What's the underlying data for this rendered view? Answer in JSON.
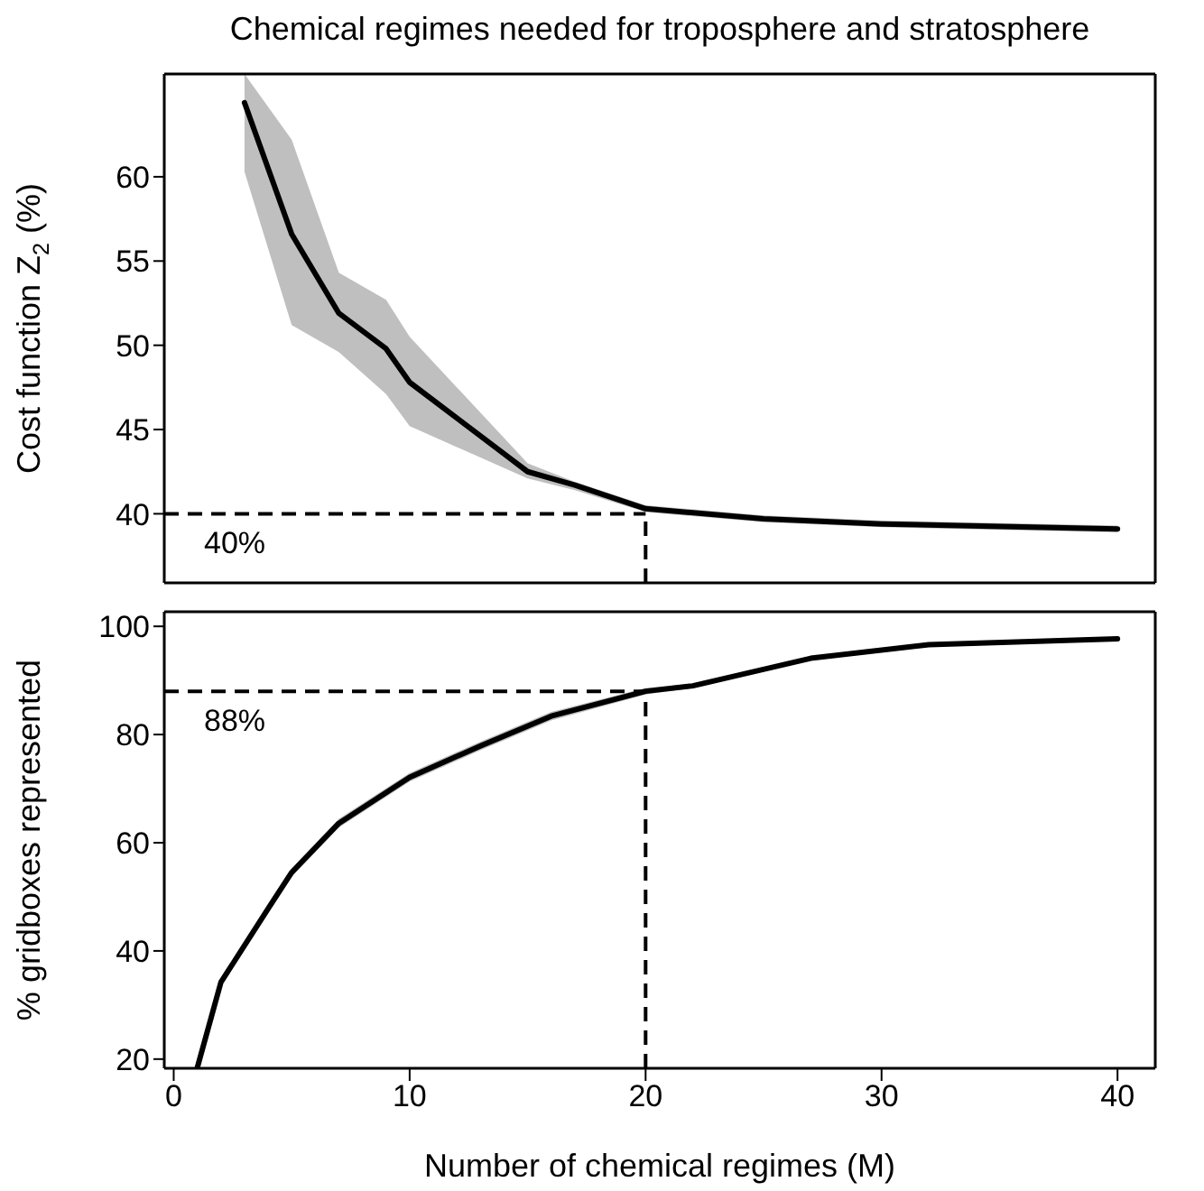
{
  "chart_data": [
    {
      "type": "line",
      "title": "Chemical regimes needed for troposphere and stratosphere",
      "ylabel": "Cost function Z$_{2}$ (%)",
      "xlim": [
        -0.4,
        41.6
      ],
      "xticks": [
        0,
        10,
        20,
        30,
        40
      ],
      "ylim": [
        35.9,
        66.1
      ],
      "yticks": [
        40,
        45,
        50,
        55,
        60
      ],
      "tick_labels": "y",
      "grid": false,
      "marker": "none",
      "line_style": "solid",
      "series": [
        {
          "color": "#000000",
          "x": [
            3,
            5,
            7,
            9,
            10,
            15,
            17,
            20,
            25,
            30,
            40
          ],
          "values": [
            64.4,
            56.6,
            51.9,
            49.8,
            47.8,
            42.5,
            41.7,
            40.3,
            39.7,
            39.4,
            39.1
          ],
          "lower": [
            60.3,
            51.2,
            49.6,
            47.1,
            45.2,
            42.1,
            41.4,
            40.1,
            39.5,
            39.2,
            38.9
          ],
          "upper": [
            66.1,
            62.2,
            54.3,
            52.7,
            50.5,
            43.0,
            41.9,
            40.5,
            39.9,
            39.6,
            39.3
          ]
        }
      ],
      "ref_lines": [
        {
          "axis": "y",
          "value": 40,
          "label": "40%",
          "line_style": "dashed",
          "color": "#000000"
        },
        {
          "axis": "x",
          "value": 20,
          "line_style": "dashed",
          "color": "#000000"
        }
      ]
    },
    {
      "type": "line",
      "xlabel": "Number of chemical regimes (M)",
      "ylabel": "% gridboxes represented",
      "xlim": [
        -0.4,
        41.6
      ],
      "xticks": [
        0,
        10,
        20,
        30,
        40
      ],
      "ylim": [
        18.3,
        102.7
      ],
      "yticks": [
        20,
        40,
        60,
        80,
        100
      ],
      "grid": false,
      "marker": "none",
      "line_style": "solid",
      "series": [
        {
          "color": "#000000",
          "x": [
            1,
            2,
            3,
            4,
            5,
            7,
            10,
            13,
            16,
            20,
            22,
            27,
            32,
            40
          ],
          "values": [
            18.4,
            34.2,
            41.0,
            47.8,
            54.5,
            63.6,
            72.1,
            77.9,
            83.4,
            88.0,
            89.0,
            94.1,
            96.6,
            97.7
          ],
          "lower": [
            18.4,
            34.2,
            40.6,
            47.0,
            53.7,
            62.8,
            71.3,
            77.1,
            82.6,
            87.4,
            88.6,
            93.8,
            96.4,
            97.5
          ],
          "upper": [
            18.4,
            34.2,
            41.4,
            48.6,
            55.3,
            64.4,
            72.9,
            78.7,
            84.2,
            88.6,
            89.4,
            94.4,
            96.8,
            97.9
          ]
        }
      ],
      "ref_lines": [
        {
          "axis": "y",
          "value": 88,
          "label": "88%",
          "line_style": "dashed",
          "color": "#000000"
        },
        {
          "axis": "x",
          "value": 20,
          "line_style": "dashed",
          "color": "#000000"
        }
      ]
    }
  ]
}
